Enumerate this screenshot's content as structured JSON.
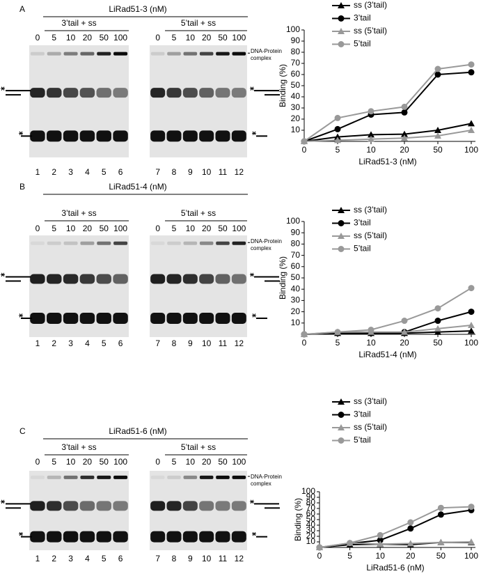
{
  "panels": [
    {
      "letter": "A",
      "title": "LiRad51-3 (nM)",
      "groups": [
        "3’tail + ss",
        "5’tail + ss"
      ],
      "concentrations": [
        0,
        5,
        10,
        20,
        50,
        100,
        0,
        5,
        10,
        20,
        50,
        100
      ],
      "lanes": [
        1,
        2,
        3,
        4,
        5,
        6,
        7,
        8,
        9,
        10,
        11,
        12
      ],
      "complex_label": "DNA-Protein complex"
    },
    {
      "letter": "B",
      "title": "LiRad51-4 (nM)",
      "groups": [
        "3’tail + ss",
        "5’tail + ss"
      ],
      "concentrations": [
        0,
        5,
        10,
        20,
        50,
        100,
        0,
        5,
        10,
        20,
        50,
        100
      ],
      "lanes": [
        1,
        2,
        3,
        4,
        5,
        6,
        7,
        8,
        9,
        10,
        11,
        12
      ],
      "complex_label": "DNA-Protein complex"
    },
    {
      "letter": "C",
      "title": "LiRad51-6 (nM)",
      "groups": [
        "3’tail + ss",
        "5’tail + ss"
      ],
      "concentrations": [
        0,
        5,
        10,
        20,
        50,
        100,
        0,
        5,
        10,
        20,
        50,
        100
      ],
      "lanes": [
        1,
        2,
        3,
        4,
        5,
        6,
        7,
        8,
        9,
        10,
        11,
        12
      ],
      "complex_label": "DNA-Protein complex"
    }
  ],
  "chart_data": [
    {
      "type": "line",
      "x_label": "LiRad51-3 (nM)",
      "y_label": "Binding (%)",
      "categories": [
        "0",
        "5",
        "10",
        "20",
        "50",
        "100"
      ],
      "ylim": [
        0,
        100
      ],
      "yticks": [
        10,
        20,
        30,
        40,
        50,
        60,
        70,
        80,
        90,
        100
      ],
      "series": [
        {
          "name": "ss (3’tail)",
          "color": "#000000",
          "marker": "triangle",
          "values": [
            0,
            4,
            6,
            6.5,
            10,
            16
          ]
        },
        {
          "name": "3’tail",
          "color": "#000000",
          "marker": "circle",
          "values": [
            0,
            11,
            24,
            26,
            60,
            62
          ]
        },
        {
          "name": "ss (5’tail)",
          "color": "#999999",
          "marker": "triangle",
          "values": [
            0,
            1,
            2,
            3,
            5,
            10
          ]
        },
        {
          "name": "5’tail",
          "color": "#999999",
          "marker": "circle",
          "values": [
            0,
            21,
            27,
            31,
            65,
            69
          ]
        }
      ]
    },
    {
      "type": "line",
      "x_label": "LiRad51-4 (nM)",
      "y_label": "Binding (%)",
      "categories": [
        "0",
        "5",
        "10",
        "20",
        "50",
        "100"
      ],
      "ylim": [
        0,
        100
      ],
      "yticks": [
        10,
        20,
        30,
        40,
        50,
        60,
        70,
        80,
        90,
        100
      ],
      "series": [
        {
          "name": "ss (3’tail)",
          "color": "#000000",
          "marker": "triangle",
          "values": [
            0,
            1,
            1,
            1,
            2,
            3
          ]
        },
        {
          "name": "3’tail",
          "color": "#000000",
          "marker": "circle",
          "values": [
            0,
            1,
            1,
            2,
            12,
            20
          ]
        },
        {
          "name": "ss (5’tail)",
          "color": "#999999",
          "marker": "triangle",
          "values": [
            0,
            2,
            2,
            2,
            5,
            8
          ]
        },
        {
          "name": "5’tail",
          "color": "#999999",
          "marker": "circle",
          "values": [
            0,
            2,
            4,
            12,
            23,
            41
          ]
        }
      ]
    },
    {
      "type": "line",
      "x_label": "LiRad51-6 (nM)",
      "y_label": "Binding (%)",
      "categories": [
        "0",
        "5",
        "10",
        "20",
        "50",
        "100"
      ],
      "ylim": [
        0,
        100
      ],
      "yticks": [
        10,
        20,
        30,
        40,
        50,
        60,
        70,
        80,
        90,
        100
      ],
      "series": [
        {
          "name": "ss (3’tail)",
          "color": "#000000",
          "marker": "triangle",
          "values": [
            0,
            5,
            6,
            5,
            9,
            9
          ]
        },
        {
          "name": "3’tail",
          "color": "#000000",
          "marker": "circle",
          "values": [
            0,
            7,
            13,
            34,
            59,
            67
          ]
        },
        {
          "name": "ss (5’tail)",
          "color": "#999999",
          "marker": "triangle",
          "values": [
            0,
            8,
            6,
            7,
            9,
            10
          ]
        },
        {
          "name": "5’tail",
          "color": "#999999",
          "marker": "circle",
          "values": [
            0,
            8,
            22,
            45,
            71,
            73
          ]
        }
      ]
    }
  ]
}
